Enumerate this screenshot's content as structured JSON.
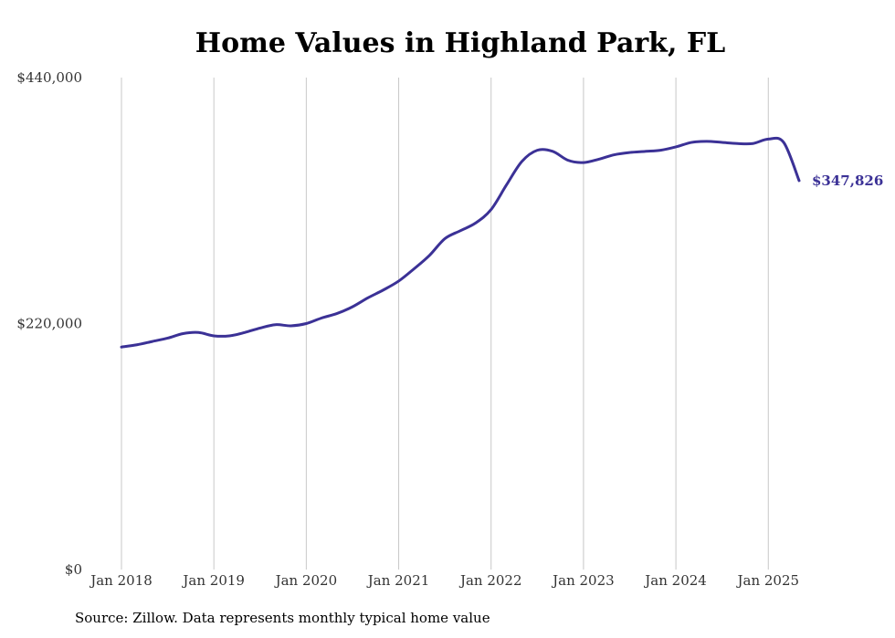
{
  "chart_data": {
    "type": "line",
    "title": "Home Values in Highland Park, FL",
    "source": "Source: Zillow. Data represents monthly typical home value",
    "end_label": "$347,826",
    "x_tick_labels": [
      "Jan 2018",
      "Jan 2019",
      "Jan 2020",
      "Jan 2021",
      "Jan 2022",
      "Jan 2023",
      "Jan 2024",
      "Jan 2025"
    ],
    "y_tick_labels": [
      "$0",
      "$220,000",
      "$440,000"
    ],
    "y_ticks": [
      0,
      220000,
      440000
    ],
    "ylim": [
      0,
      440000
    ],
    "xlim": [
      "2018-01",
      "2025-05"
    ],
    "grid": "vertical",
    "line_color": "#3b3196",
    "x": [
      "2018-01",
      "2018-03",
      "2018-05",
      "2018-07",
      "2018-09",
      "2018-11",
      "2019-01",
      "2019-03",
      "2019-05",
      "2019-07",
      "2019-09",
      "2019-11",
      "2020-01",
      "2020-03",
      "2020-05",
      "2020-07",
      "2020-09",
      "2020-11",
      "2021-01",
      "2021-03",
      "2021-05",
      "2021-07",
      "2021-09",
      "2021-11",
      "2022-01",
      "2022-03",
      "2022-05",
      "2022-07",
      "2022-09",
      "2022-11",
      "2023-01",
      "2023-03",
      "2023-05",
      "2023-07",
      "2023-09",
      "2023-11",
      "2024-01",
      "2024-03",
      "2024-05",
      "2024-07",
      "2024-09",
      "2024-11",
      "2025-01",
      "2025-03",
      "2025-05"
    ],
    "values": [
      199000,
      201000,
      204000,
      207000,
      211000,
      212000,
      209000,
      209000,
      212000,
      216000,
      219000,
      218000,
      220000,
      225000,
      229000,
      235000,
      243000,
      250000,
      258000,
      269000,
      281000,
      296000,
      303000,
      310000,
      322000,
      344000,
      365000,
      375000,
      374000,
      366000,
      364000,
      367000,
      371000,
      373000,
      374000,
      375000,
      378000,
      382000,
      383000,
      382000,
      381000,
      381000,
      385000,
      382000,
      347826
    ]
  }
}
